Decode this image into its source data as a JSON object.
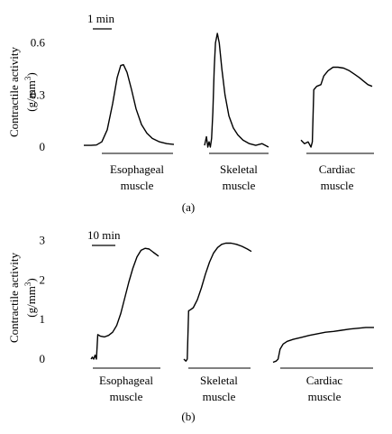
{
  "chart_data": [
    {
      "type": "line",
      "panel_label": "(a)",
      "ylabel_line1": "Contractile activity",
      "ylabel_line2": "(g/mm",
      "ylabel_sup": "3",
      "ylabel_close": ")",
      "ylim": [
        0,
        0.65
      ],
      "yticks": [
        "0",
        "0.3",
        "0.6"
      ],
      "ytick_values": [
        0,
        0.3,
        0.6
      ],
      "scale_bar_label": "1 min",
      "axis_line_color": "#000000",
      "series": [
        {
          "category_line1": "Esophageal",
          "category_line2": "muscle",
          "points": [
            [
              0,
              0.01
            ],
            [
              0.08,
              0.01
            ],
            [
              0.14,
              0.012
            ],
            [
              0.2,
              0.03
            ],
            [
              0.26,
              0.1
            ],
            [
              0.32,
              0.25
            ],
            [
              0.37,
              0.4
            ],
            [
              0.41,
              0.47
            ],
            [
              0.44,
              0.475
            ],
            [
              0.48,
              0.43
            ],
            [
              0.53,
              0.33
            ],
            [
              0.58,
              0.22
            ],
            [
              0.64,
              0.13
            ],
            [
              0.7,
              0.08
            ],
            [
              0.76,
              0.05
            ],
            [
              0.84,
              0.03
            ],
            [
              0.92,
              0.02
            ],
            [
              1,
              0.015
            ]
          ]
        },
        {
          "category_line1": "Skeletal",
          "category_line2": "muscle",
          "points": [
            [
              0,
              0.01
            ],
            [
              0.03,
              0.06
            ],
            [
              0.05,
              0.0
            ],
            [
              0.07,
              0.03
            ],
            [
              0.09,
              0.0
            ],
            [
              0.11,
              0.05
            ],
            [
              0.13,
              0.2
            ],
            [
              0.15,
              0.45
            ],
            [
              0.17,
              0.6
            ],
            [
              0.2,
              0.655
            ],
            [
              0.23,
              0.6
            ],
            [
              0.27,
              0.45
            ],
            [
              0.32,
              0.3
            ],
            [
              0.38,
              0.18
            ],
            [
              0.45,
              0.11
            ],
            [
              0.52,
              0.07
            ],
            [
              0.6,
              0.04
            ],
            [
              0.7,
              0.02
            ],
            [
              0.8,
              0.01
            ],
            [
              0.9,
              0.02
            ],
            [
              1,
              0.0
            ]
          ]
        },
        {
          "category_line1": "Cardiac",
          "category_line2": "muscle",
          "points": [
            [
              0,
              0.04
            ],
            [
              0.05,
              0.02
            ],
            [
              0.1,
              0.03
            ],
            [
              0.14,
              0.0
            ],
            [
              0.16,
              0.03
            ],
            [
              0.18,
              0.33
            ],
            [
              0.22,
              0.35
            ],
            [
              0.28,
              0.36
            ],
            [
              0.32,
              0.41
            ],
            [
              0.38,
              0.44
            ],
            [
              0.45,
              0.46
            ],
            [
              0.52,
              0.46
            ],
            [
              0.6,
              0.455
            ],
            [
              0.68,
              0.44
            ],
            [
              0.75,
              0.42
            ],
            [
              0.82,
              0.4
            ],
            [
              0.88,
              0.38
            ],
            [
              0.94,
              0.36
            ],
            [
              1,
              0.35
            ]
          ]
        }
      ]
    },
    {
      "type": "line",
      "panel_label": "(b)",
      "ylabel_line1": "Contractile activity",
      "ylabel_line2": "(g/mm",
      "ylabel_sup": "3",
      "ylabel_close": ")",
      "ylim": [
        0,
        3.1
      ],
      "yticks": [
        "0",
        "1",
        "2",
        "3"
      ],
      "ytick_values": [
        0,
        1,
        2,
        3
      ],
      "scale_bar_label": "10 min",
      "axis_line_color": "#000000",
      "series": [
        {
          "category_line1": "Esophageal",
          "category_line2": "muscle",
          "points": [
            [
              0,
              0.0
            ],
            [
              0.02,
              0.05
            ],
            [
              0.04,
              0.0
            ],
            [
              0.06,
              0.1
            ],
            [
              0.08,
              0.0
            ],
            [
              0.1,
              0.62
            ],
            [
              0.14,
              0.58
            ],
            [
              0.2,
              0.56
            ],
            [
              0.26,
              0.6
            ],
            [
              0.32,
              0.68
            ],
            [
              0.38,
              0.85
            ],
            [
              0.44,
              1.15
            ],
            [
              0.5,
              1.55
            ],
            [
              0.56,
              1.95
            ],
            [
              0.62,
              2.3
            ],
            [
              0.68,
              2.58
            ],
            [
              0.74,
              2.75
            ],
            [
              0.8,
              2.8
            ],
            [
              0.86,
              2.78
            ],
            [
              0.92,
              2.7
            ],
            [
              1,
              2.6
            ]
          ]
        },
        {
          "category_line1": "Skeletal",
          "category_line2": "muscle",
          "points": [
            [
              0,
              0.0
            ],
            [
              0.03,
              -0.05
            ],
            [
              0.05,
              0.0
            ],
            [
              0.07,
              1.22
            ],
            [
              0.1,
              1.25
            ],
            [
              0.14,
              1.3
            ],
            [
              0.2,
              1.5
            ],
            [
              0.26,
              1.8
            ],
            [
              0.32,
              2.15
            ],
            [
              0.38,
              2.45
            ],
            [
              0.44,
              2.68
            ],
            [
              0.5,
              2.82
            ],
            [
              0.56,
              2.9
            ],
            [
              0.62,
              2.93
            ],
            [
              0.7,
              2.93
            ],
            [
              0.78,
              2.9
            ],
            [
              0.86,
              2.85
            ],
            [
              0.94,
              2.78
            ],
            [
              1,
              2.72
            ]
          ]
        },
        {
          "category_line1": "Cardiac",
          "category_line2": "muscle",
          "points": [
            [
              0,
              -0.08
            ],
            [
              0.03,
              -0.05
            ],
            [
              0.05,
              0.0
            ],
            [
              0.07,
              0.25
            ],
            [
              0.1,
              0.38
            ],
            [
              0.14,
              0.45
            ],
            [
              0.2,
              0.5
            ],
            [
              0.28,
              0.55
            ],
            [
              0.36,
              0.6
            ],
            [
              0.44,
              0.64
            ],
            [
              0.52,
              0.68
            ],
            [
              0.6,
              0.7
            ],
            [
              0.68,
              0.73
            ],
            [
              0.76,
              0.76
            ],
            [
              0.84,
              0.78
            ],
            [
              0.92,
              0.8
            ],
            [
              1,
              0.8
            ]
          ]
        }
      ]
    }
  ]
}
